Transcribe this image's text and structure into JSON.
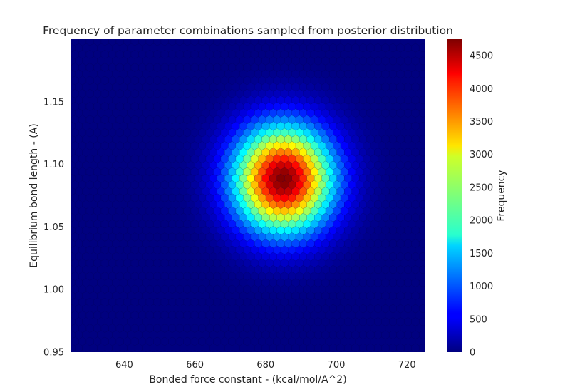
{
  "chart_data": {
    "type": "heatmap",
    "subtype": "hexbin",
    "title": "Frequency of parameter combinations sampled from posterior distribution",
    "xlabel": "Bonded force constant - (kcal/mol/A^2)",
    "ylabel": "Equilibrium bond length - (A)",
    "xlim": [
      625,
      725
    ],
    "ylim": [
      0.95,
      1.2
    ],
    "x_ticks": [
      640,
      660,
      680,
      700,
      720
    ],
    "y_ticks": [
      0.95,
      1.0,
      1.05,
      1.1,
      1.15
    ],
    "x_tick_labels": [
      "640",
      "660",
      "680",
      "700",
      "720"
    ],
    "y_tick_labels": [
      "0.95",
      "1.00",
      "1.05",
      "1.10",
      "1.15"
    ],
    "grid": false,
    "colormap": "jet",
    "colorbar": {
      "label": "Frequency",
      "min": 0,
      "max": 4750,
      "ticks": [
        0,
        500,
        1000,
        1500,
        2000,
        2500,
        3000,
        3500,
        4000,
        4500
      ],
      "tick_labels": [
        "0",
        "500",
        "1000",
        "1500",
        "2000",
        "2500",
        "3000",
        "3500",
        "4000",
        "4500"
      ]
    },
    "distribution": {
      "center_x": 685,
      "center_y": 1.088,
      "sigma_x": 9.5,
      "sigma_y": 0.029,
      "peak_frequency": 4750
    }
  }
}
